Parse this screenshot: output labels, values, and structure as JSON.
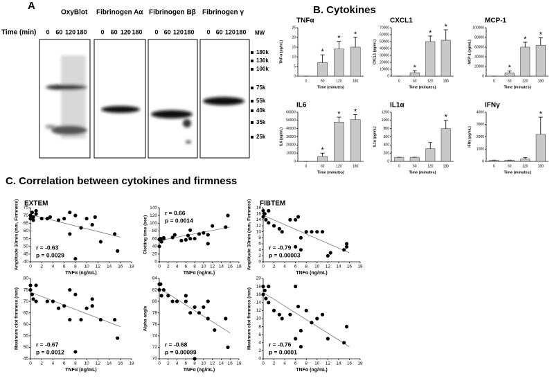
{
  "panels": {
    "a": "A",
    "b": "B. Cytokines",
    "c": "C. Correlation between cytokines and firmness",
    "extem": "EXTEM",
    "fibtem": "FIBTEM"
  },
  "blot": {
    "time_label": "Time (min)",
    "mw_label": "MW",
    "lanes": [
      {
        "title": "OxyBlot",
        "times": [
          "0",
          "60",
          "120",
          "180"
        ]
      },
      {
        "title": "Fibrinogen Aα",
        "times": [
          "0",
          "60",
          "120",
          "180"
        ]
      },
      {
        "title": "Fibrinogen Bβ",
        "times": [
          "0",
          "60",
          "120",
          "180"
        ]
      },
      {
        "title": "Fibrinogen γ",
        "times": [
          "0",
          "60",
          "120",
          "180"
        ]
      }
    ],
    "mw_markers": [
      "180k",
      "130k",
      "100k",
      "75k",
      "55k",
      "40k",
      "35k",
      "25k"
    ]
  },
  "chart_data": [
    {
      "type": "bar",
      "title": "TNFα",
      "y_label": "TNF-α (pg/mL)",
      "x_label": "Time (minutes)",
      "categories": [
        "0",
        "60",
        "120",
        "180"
      ],
      "values": [
        0,
        7,
        14,
        15
      ],
      "errors": [
        0,
        4,
        4,
        5
      ],
      "color": "#c8c8c8",
      "ylim": [
        0,
        25
      ],
      "yticks": [
        0,
        5,
        10,
        15,
        20,
        25
      ],
      "annotations": [
        {
          "text": "*",
          "category": "60"
        },
        {
          "text": "*",
          "category": "120"
        },
        {
          "text": "*",
          "category": "180"
        }
      ]
    },
    {
      "type": "bar",
      "title": "CXCL1",
      "y_label": "CXCL1 (pg/mL)",
      "x_label": "Time (minutes)",
      "categories": [
        "0",
        "60",
        "120",
        "180"
      ],
      "values": [
        0,
        5000,
        50000,
        52000
      ],
      "errors": [
        0,
        3000,
        8000,
        15000
      ],
      "color": "#c8c8c8",
      "ylim": [
        0,
        70000
      ],
      "yticks": [
        0,
        10000,
        20000,
        30000,
        40000,
        50000,
        60000,
        70000
      ],
      "annotations": [
        {
          "text": "*",
          "category": "60"
        },
        {
          "text": "*",
          "category": "120"
        },
        {
          "text": "*",
          "category": "180"
        }
      ]
    },
    {
      "type": "bar",
      "title": "MCP-1",
      "y_label": "MCP-1 (pg/mL)",
      "x_label": "Time (minutes)",
      "categories": [
        "0",
        "60",
        "120",
        "180"
      ],
      "values": [
        0,
        7000,
        60000,
        64000
      ],
      "errors": [
        0,
        4000,
        10000,
        15000
      ],
      "color": "#c8c8c8",
      "ylim": [
        0,
        100000
      ],
      "yticks": [
        0,
        20000,
        40000,
        60000,
        80000,
        100000
      ],
      "annotations": [
        {
          "text": "*",
          "category": "60"
        },
        {
          "text": "*",
          "category": "120"
        },
        {
          "text": "*",
          "category": "180"
        }
      ]
    },
    {
      "type": "bar",
      "title": "IL6",
      "y_label": "IL6 (pg/mL)",
      "x_label": "Time (minutes)",
      "categories": [
        "0",
        "60",
        "120",
        "180"
      ],
      "values": [
        0,
        6000,
        48000,
        51000
      ],
      "errors": [
        0,
        4000,
        6000,
        6000
      ],
      "color": "#c8c8c8",
      "ylim": [
        0,
        60000
      ],
      "yticks": [
        0,
        10000,
        20000,
        30000,
        40000,
        50000,
        60000
      ],
      "annotations": [
        {
          "text": "*",
          "category": "60"
        },
        {
          "text": "*",
          "category": "120"
        },
        {
          "text": "*",
          "category": "180"
        }
      ]
    },
    {
      "type": "bar",
      "title": "IL1α",
      "y_label": "IL1α (pg/mL)",
      "x_label": "Time (minutes)",
      "categories": [
        "0",
        "60",
        "120",
        "180"
      ],
      "values": [
        100,
        100,
        310,
        800
      ],
      "errors": [
        0,
        0,
        150,
        200
      ],
      "color": "#c8c8c8",
      "ylim": [
        0,
        1200
      ],
      "yticks": [
        0,
        200,
        400,
        600,
        800,
        1000,
        1200
      ],
      "annotations": [
        {
          "text": "*",
          "category": "180"
        }
      ]
    },
    {
      "type": "bar",
      "title": "IFNγ",
      "y_label": "IFNγ (pg/mL)",
      "x_label": "Time (minutes)",
      "categories": [
        "0",
        "60",
        "120",
        "180"
      ],
      "values": [
        100,
        100,
        200,
        2200
      ],
      "errors": [
        0,
        0,
        100,
        1400
      ],
      "color": "#c8c8c8",
      "ylim": [
        0,
        4000
      ],
      "yticks": [
        0,
        1000,
        2000,
        3000,
        4000
      ],
      "annotations": [
        {
          "text": "*",
          "category": "180"
        }
      ]
    },
    {
      "type": "scatter",
      "y_label": "Amplitude 10min (mm, Firmness)",
      "x_label": "TNFα (ng/mL)",
      "color": "#000000",
      "x": [
        0,
        0,
        0.3,
        0.5,
        0.5,
        1,
        1,
        2,
        3,
        3.5,
        5,
        6,
        7,
        7,
        8,
        8,
        9,
        10,
        11,
        11.5,
        12.5,
        15,
        15.5
      ],
      "values": [
        70,
        68,
        72,
        67,
        69,
        73,
        71,
        68,
        68,
        69,
        67,
        68,
        72,
        58,
        42,
        70,
        62,
        68,
        64,
        69,
        53,
        58,
        47
      ],
      "xlim": [
        0,
        18
      ],
      "xticks": [
        0,
        2,
        4,
        6,
        8,
        10,
        12,
        14,
        16,
        18
      ],
      "ylim": [
        40,
        75
      ],
      "yticks": [
        40,
        45,
        50,
        55,
        60,
        65,
        70,
        75
      ],
      "trendline": {
        "x": [
          0,
          16
        ],
        "y": [
          70.5,
          56
        ]
      },
      "annotations": [
        "r = -0.63",
        "p = 0.0029"
      ],
      "annotation_corner": "bottom-left"
    },
    {
      "type": "scatter",
      "y_label": "Clotting time (sec)",
      "x_label": "TNFα (ng/mL)",
      "color": "#000000",
      "x": [
        0,
        0,
        0.3,
        0.5,
        1,
        1,
        3,
        3.5,
        5,
        6,
        6.5,
        7,
        7,
        8,
        9,
        10,
        11,
        11,
        12,
        15,
        15.5
      ],
      "values": [
        40,
        58,
        60,
        52,
        60,
        62,
        63,
        70,
        55,
        57,
        68,
        82,
        60,
        60,
        72,
        75,
        47,
        70,
        93,
        90,
        120
      ],
      "xlim": [
        0,
        18
      ],
      "xticks": [
        0,
        2,
        4,
        6,
        8,
        10,
        12,
        14,
        16,
        18
      ],
      "ylim": [
        0,
        140
      ],
      "yticks": [
        0,
        20,
        40,
        60,
        80,
        100,
        120,
        140
      ],
      "trendline": {
        "x": [
          0,
          16
        ],
        "y": [
          55,
          90
        ]
      },
      "annotations": [
        "r = 0.66",
        "p = 0.0014"
      ],
      "annotation_corner": "top-left"
    },
    {
      "type": "scatter",
      "y_label": "Amplitude 10min (mm, Firmness)",
      "x_label": "TNFα (ng/mL)",
      "color": "#000000",
      "x": [
        0,
        0,
        0.3,
        0.5,
        1,
        1,
        2,
        3,
        3.5,
        5,
        6,
        6,
        6.5,
        7,
        7,
        8,
        9,
        10,
        11,
        12,
        12.5,
        15,
        15.5,
        15.5
      ],
      "values": [
        17,
        15,
        16,
        14,
        17,
        13,
        12,
        11,
        10,
        14,
        14,
        5,
        15,
        4,
        8,
        10,
        10,
        10,
        10,
        2,
        3,
        4,
        6,
        5
      ],
      "xlim": [
        0,
        18
      ],
      "xticks": [
        0,
        2,
        4,
        6,
        8,
        10,
        12,
        14,
        16,
        18
      ],
      "ylim": [
        0,
        18
      ],
      "yticks": [
        0,
        2,
        4,
        6,
        8,
        10,
        12,
        14,
        16,
        18
      ],
      "trendline": {
        "x": [
          0,
          16
        ],
        "y": [
          15.5,
          3
        ]
      },
      "annotations": [
        "r = -0.79",
        "p = 0.00003"
      ],
      "annotation_corner": "bottom-left"
    },
    {
      "type": "scatter",
      "y_label": "Maximum clot firmness (mm)",
      "x_label": "TNFα (ng/mL)",
      "color": "#000000",
      "x": [
        0,
        0,
        0.3,
        0.5,
        1,
        1,
        3,
        4,
        5,
        6,
        7,
        7,
        8,
        8,
        9,
        10,
        11,
        11,
        12.5,
        15,
        15.5
      ],
      "values": [
        75,
        77,
        73,
        71,
        77,
        70,
        70,
        70,
        67,
        68,
        62,
        75,
        48,
        73,
        62,
        67,
        68,
        71,
        62,
        62,
        54
      ],
      "xlim": [
        0,
        18
      ],
      "xticks": [
        0,
        2,
        4,
        6,
        8,
        10,
        12,
        14,
        16,
        18
      ],
      "ylim": [
        45,
        80
      ],
      "yticks": [
        45,
        50,
        55,
        60,
        65,
        70,
        75,
        80
      ],
      "trendline": {
        "x": [
          0,
          16
        ],
        "y": [
          74,
          59
        ]
      },
      "annotations": [
        "r = -0.67",
        "p = 0.0012"
      ],
      "annotation_corner": "bottom-left"
    },
    {
      "type": "scatter",
      "y_label": "Alpha angle",
      "x_label": "TNFα (ng/mL)",
      "color": "#000000",
      "x": [
        0,
        0,
        0.3,
        0.5,
        1,
        2,
        3,
        4,
        6,
        6,
        7,
        8,
        8,
        9,
        10,
        11,
        11,
        12.5,
        15,
        15.5
      ],
      "values": [
        83,
        82,
        83,
        81,
        82,
        81,
        80,
        80,
        81,
        80,
        78,
        70,
        79,
        78,
        79,
        80,
        77,
        75,
        77,
        72
      ],
      "xlim": [
        0,
        18
      ],
      "xticks": [
        0,
        2,
        4,
        6,
        8,
        10,
        12,
        14,
        16,
        18
      ],
      "ylim": [
        70,
        84
      ],
      "yticks": [
        70,
        72,
        74,
        76,
        78,
        80,
        82,
        84
      ],
      "trendline": {
        "x": [
          0,
          16
        ],
        "y": [
          82.3,
          74.5
        ]
      },
      "annotations": [
        "r = -0.68",
        "p = 0.00099"
      ],
      "annotation_corner": "bottom-left"
    },
    {
      "type": "scatter",
      "y_label": "Maximum clot firmness (mm)",
      "x_label": "TNFα (ng/mL)",
      "color": "#000000",
      "x": [
        0,
        0,
        0.3,
        0.5,
        1,
        1,
        2,
        3,
        3.5,
        5,
        6,
        6,
        6.5,
        7,
        7,
        8,
        9,
        10,
        11,
        12,
        15,
        15.5
      ],
      "values": [
        18,
        16,
        17,
        15,
        18,
        14,
        12,
        11,
        10,
        11,
        18,
        5,
        13,
        3,
        7,
        12,
        9,
        10,
        11,
        5,
        4,
        8
      ],
      "xlim": [
        0,
        18
      ],
      "xticks": [
        0,
        2,
        4,
        6,
        8,
        10,
        12,
        14,
        16,
        18
      ],
      "ylim": [
        0,
        20
      ],
      "yticks": [
        0,
        2,
        4,
        6,
        8,
        10,
        12,
        14,
        16,
        18,
        20
      ],
      "trendline": {
        "x": [
          0,
          16
        ],
        "y": [
          16.5,
          3
        ]
      },
      "annotations": [
        "r = -0.76",
        "p = 0.0001"
      ],
      "annotation_corner": "bottom-left"
    }
  ]
}
